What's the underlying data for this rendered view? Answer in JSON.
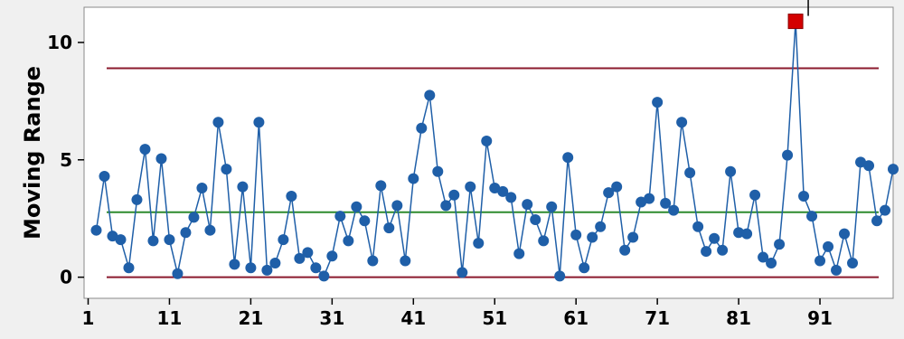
{
  "chart_data": {
    "type": "line",
    "title": "",
    "xlabel": "",
    "ylabel": "Moving Range",
    "xlim": [
      0.5,
      100
    ],
    "ylim": [
      -0.9,
      11.5
    ],
    "x_ticks": [
      1,
      11,
      21,
      31,
      41,
      51,
      61,
      71,
      81,
      91
    ],
    "y_ticks": [
      0,
      5,
      10
    ],
    "x_tick_labels": [
      "1",
      "11",
      "21",
      "31",
      "41",
      "51",
      "61",
      "71",
      "81",
      "91"
    ],
    "y_tick_labels": [
      "0",
      "5",
      "10"
    ],
    "reference_lines": [
      {
        "kind": "UCL",
        "value": 8.9,
        "color": "#8b1a2e"
      },
      {
        "kind": "center",
        "value": 2.77,
        "color": "#2e8b2e"
      },
      {
        "kind": "LCL",
        "value": 0,
        "color": "#8b1a2e"
      }
    ],
    "series": [
      {
        "color": "#1f5fa8",
        "x_start": 2,
        "values": [
          2.0,
          4.3,
          1.75,
          1.6,
          0.4,
          3.3,
          5.45,
          1.55,
          5.05,
          1.6,
          0.15,
          1.9,
          2.55,
          3.8,
          2.0,
          6.6,
          4.6,
          0.55,
          3.85,
          0.4,
          6.6,
          0.3,
          0.6,
          1.6,
          3.45,
          0.8,
          1.05,
          0.4,
          0.05,
          0.9,
          2.6,
          1.55,
          3.0,
          2.4,
          0.7,
          3.9,
          2.1,
          3.05,
          0.7,
          4.2,
          6.35,
          7.75,
          4.5,
          3.05,
          3.5,
          0.2,
          3.85,
          1.45,
          5.8,
          3.8,
          3.65,
          3.4,
          1.0,
          3.1,
          2.45,
          1.55,
          3.0,
          0.05,
          5.1,
          1.8,
          0.4,
          1.7,
          2.15,
          3.6,
          3.85,
          1.15,
          1.7,
          3.2,
          3.35,
          7.45,
          3.15,
          2.85,
          6.6,
          4.45,
          2.15,
          1.1,
          1.65,
          1.15,
          4.5,
          1.9,
          1.85,
          3.5,
          0.85,
          0.6,
          1.4,
          5.2,
          10.9,
          3.45,
          2.6,
          0.7,
          1.3,
          0.3,
          1.85,
          0.6,
          4.9,
          4.75,
          2.4,
          2.85,
          4.6
        ]
      }
    ],
    "out_of_control_points": [
      {
        "x": 88,
        "value": 10.9,
        "color": "#d40000"
      }
    ]
  }
}
